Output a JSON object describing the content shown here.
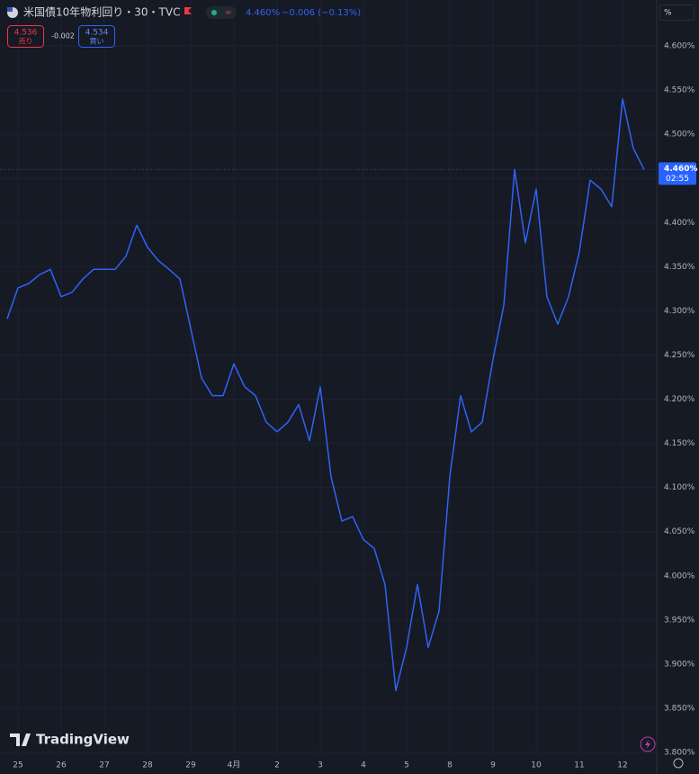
{
  "chart_data": {
    "type": "line",
    "header": {
      "symbol": "米国債10年物利回り・30・TVC",
      "price": "4.460%",
      "change": "−0.006 (−0.13%)",
      "sell_price": "4.536",
      "sell_label": "売り",
      "spread": "-0.002",
      "buy_price": "4.534",
      "buy_label": "買い",
      "axis_unit": "%",
      "last_label": "4.460%",
      "countdown": "02:55",
      "brand": "TradingView"
    },
    "categories": [
      null,
      "25",
      null,
      null,
      null,
      "26",
      null,
      null,
      null,
      "27",
      null,
      null,
      null,
      "28",
      null,
      null,
      null,
      "29",
      null,
      null,
      null,
      "4月",
      null,
      null,
      null,
      "2",
      null,
      null,
      null,
      "3",
      null,
      null,
      null,
      "4",
      null,
      null,
      null,
      "5",
      null,
      null,
      null,
      "8",
      null,
      null,
      null,
      "9",
      null,
      null,
      null,
      "10",
      null,
      null,
      null,
      "11",
      null,
      null,
      null,
      "12",
      null,
      null
    ],
    "series": [
      {
        "name": "米国債10年物利回り",
        "color": "#2f63f5",
        "values": [
          4.291,
          4.326,
          4.331,
          4.341,
          4.347,
          4.316,
          4.321,
          4.336,
          4.347,
          4.347,
          4.347,
          4.362,
          4.397,
          4.372,
          4.357,
          4.347,
          4.336,
          4.28,
          4.224,
          4.204,
          4.204,
          4.24,
          4.214,
          4.204,
          4.174,
          4.163,
          4.174,
          4.194,
          4.153,
          4.214,
          4.112,
          4.062,
          4.067,
          4.041,
          4.031,
          3.99,
          3.87,
          3.919,
          3.99,
          3.919,
          3.96,
          4.112,
          4.204,
          4.163,
          4.174,
          4.245,
          4.306,
          4.46,
          4.377,
          4.438,
          4.316,
          4.285,
          4.316,
          4.367,
          4.448,
          4.438,
          4.418,
          4.54,
          4.484,
          4.46
        ]
      }
    ],
    "ylim": [
      3.796,
      4.652
    ],
    "yticks": [
      {
        "value": 4.6,
        "label": "4.600%"
      },
      {
        "value": 4.55,
        "label": "4.550%"
      },
      {
        "value": 4.5,
        "label": "4.500%"
      },
      {
        "value": 4.45,
        "label": "4.450%"
      },
      {
        "value": 4.4,
        "label": "4.400%"
      },
      {
        "value": 4.35,
        "label": "4.350%"
      },
      {
        "value": 4.3,
        "label": "4.300%"
      },
      {
        "value": 4.25,
        "label": "4.250%"
      },
      {
        "value": 4.2,
        "label": "4.200%"
      },
      {
        "value": 4.15,
        "label": "4.150%"
      },
      {
        "value": 4.1,
        "label": "4.100%"
      },
      {
        "value": 4.05,
        "label": "4.050%"
      },
      {
        "value": 4.0,
        "label": "4.000%"
      },
      {
        "value": 3.95,
        "label": "3.950%"
      },
      {
        "value": 3.9,
        "label": "3.900%"
      },
      {
        "value": 3.85,
        "label": "3.850%"
      },
      {
        "value": 3.8,
        "label": "3.800%"
      }
    ],
    "grid": true
  }
}
